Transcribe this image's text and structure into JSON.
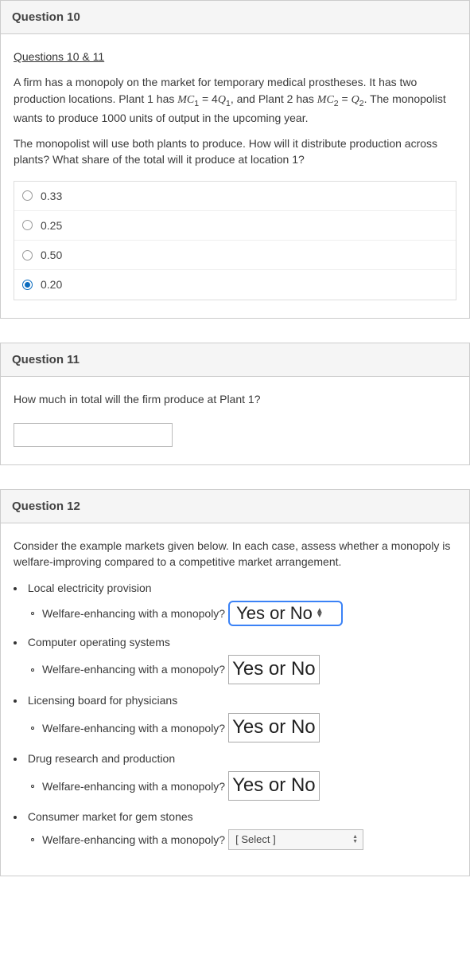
{
  "q10": {
    "header": "Question 10",
    "link_text": "Questions 10 & 11",
    "para1_pre": "A firm has a monopoly on the market for temporary medical prostheses. It has two production locations. Plant 1 has ",
    "mc1": "MC",
    "mc1_sub": "1",
    "eq1": " = 4",
    "q1": "Q",
    "q1_sub": "1",
    "mid": ", and Plant 2 has ",
    "mc2": "MC",
    "mc2_sub": "2",
    "eq2": " = ",
    "q2": "Q",
    "q2_sub": "2",
    "para1_post": ". The monopolist wants to produce 1000 units of output in the upcoming year.",
    "para2": "The monopolist will use both plants to produce. How will it distribute production across plants? What share of the total will it produce at location 1?",
    "options": [
      {
        "label": "0.33",
        "selected": false
      },
      {
        "label": "0.25",
        "selected": false
      },
      {
        "label": "0.50",
        "selected": false
      },
      {
        "label": "0.20",
        "selected": true
      }
    ]
  },
  "q11": {
    "header": "Question 11",
    "prompt": "How much in total will the firm produce at Plant 1?",
    "value": ""
  },
  "q12": {
    "header": "Question 12",
    "prompt": "Consider the example markets given below. In each case, assess whether a monopoly is welfare-improving compared to a competitive market arrangement.",
    "sub_label": "Welfare-enhancing with a monopoly?",
    "markets": {
      "m0": "Local electricity provision",
      "m1": "Computer operating systems",
      "m2": "Licensing board for physicians",
      "m3": "Drug research and production",
      "m4": "Consumer market for gem stones"
    },
    "select_highlight_text": "Yes or No",
    "overlay_text": "Yes or No",
    "select_plain_text": "[ Select ]"
  }
}
